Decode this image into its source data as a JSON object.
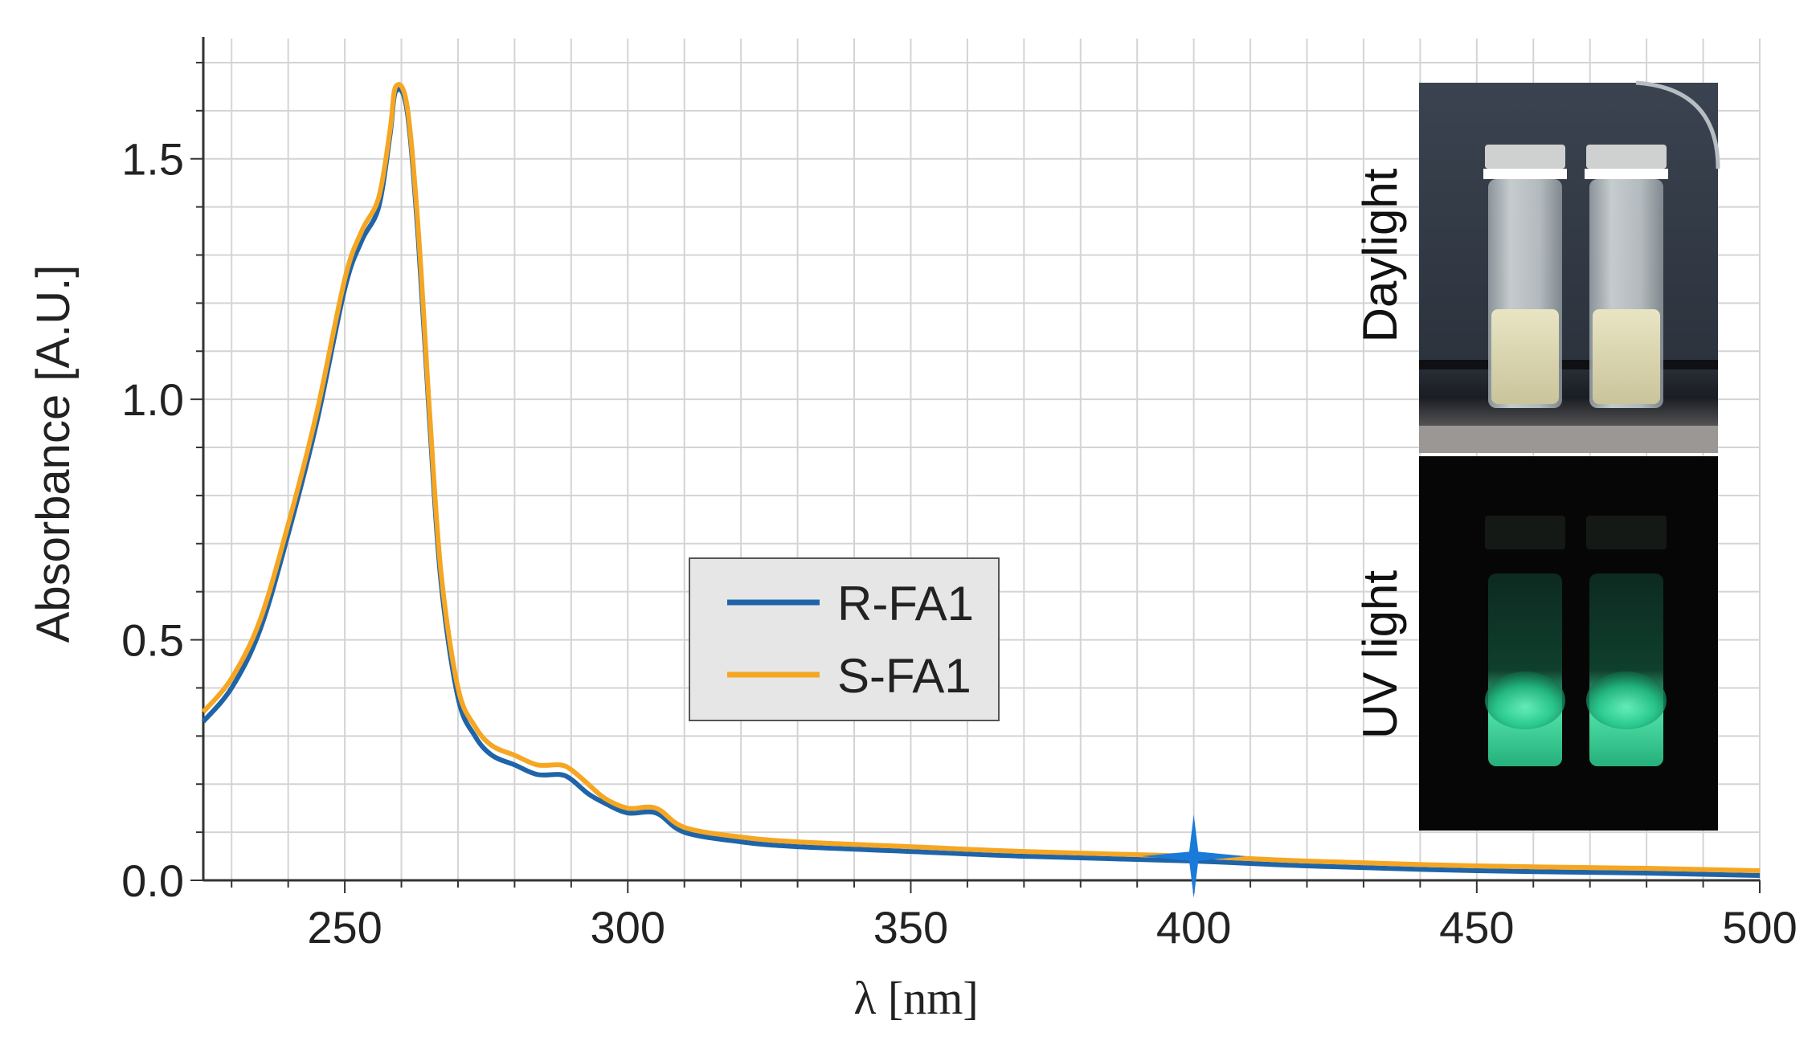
{
  "chart_data": {
    "type": "line",
    "xlabel": "λ [nm]",
    "ylabel": "Absorbance [A.U.]",
    "xlim": [
      225,
      500
    ],
    "ylim": [
      0,
      1.75
    ],
    "x_ticks": [
      250,
      300,
      350,
      400,
      450,
      500
    ],
    "y_ticks": [
      0.0,
      0.5,
      1.0,
      1.5
    ],
    "x_tick_labels": [
      "250",
      "300",
      "350",
      "400",
      "450",
      "500"
    ],
    "y_tick_labels": [
      "0.0",
      "0.5",
      "1.0",
      "1.5"
    ],
    "grid": true,
    "legend_position": "center",
    "colors": {
      "R-FA1": "#1f64a8",
      "S-FA1": "#f5a623",
      "marker": "#1a7ad9"
    },
    "series": [
      {
        "name": "R-FA1",
        "x": [
          225,
          230,
          235,
          240,
          245,
          250,
          253,
          256,
          258,
          259,
          261,
          263,
          265,
          267,
          270,
          273,
          276,
          280,
          284,
          288,
          290,
          293,
          296,
          300,
          305,
          310,
          320,
          330,
          350,
          370,
          400,
          420,
          450,
          480,
          500
        ],
        "y": [
          0.33,
          0.4,
          0.52,
          0.72,
          0.95,
          1.23,
          1.33,
          1.4,
          1.55,
          1.64,
          1.6,
          1.33,
          0.95,
          0.62,
          0.38,
          0.3,
          0.26,
          0.24,
          0.22,
          0.22,
          0.21,
          0.18,
          0.16,
          0.14,
          0.14,
          0.1,
          0.08,
          0.07,
          0.06,
          0.05,
          0.04,
          0.03,
          0.02,
          0.015,
          0.01
        ]
      },
      {
        "name": "S-FA1",
        "x": [
          225,
          230,
          235,
          240,
          245,
          250,
          253,
          256,
          258,
          259,
          261,
          263,
          265,
          267,
          270,
          273,
          276,
          280,
          284,
          288,
          290,
          293,
          296,
          300,
          305,
          310,
          320,
          330,
          350,
          370,
          400,
          420,
          450,
          480,
          500
        ],
        "y": [
          0.35,
          0.42,
          0.54,
          0.74,
          0.97,
          1.25,
          1.35,
          1.42,
          1.56,
          1.65,
          1.61,
          1.35,
          0.97,
          0.64,
          0.4,
          0.32,
          0.28,
          0.26,
          0.24,
          0.24,
          0.23,
          0.2,
          0.17,
          0.15,
          0.15,
          0.11,
          0.09,
          0.08,
          0.07,
          0.06,
          0.05,
          0.04,
          0.03,
          0.025,
          0.02
        ]
      }
    ],
    "marker": {
      "type": "star",
      "x": 400,
      "y": 0.05
    },
    "inset": {
      "labels": [
        "Daylight",
        "UV light"
      ]
    }
  }
}
